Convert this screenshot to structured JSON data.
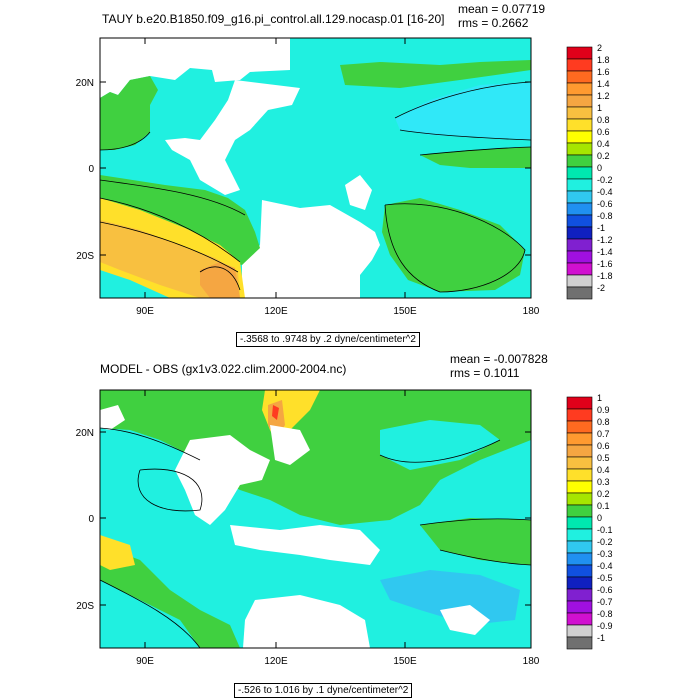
{
  "chart_data": [
    {
      "type": "heatmap",
      "title": "TAUY b.e20.B1850.f09_g16.pi_control.all.129.nocasp.01 [16-20]",
      "stats": {
        "mean": "mean = 0.07719",
        "rms": "rms = 0.2662"
      },
      "range_label": "-.3568 to .9748 by .2 dyne/centimeter^2",
      "x_ticks": [
        "90E",
        "120E",
        "150E",
        "180"
      ],
      "y_ticks": [
        "20N",
        "0",
        "20S"
      ],
      "xlim": [
        80,
        180
      ],
      "ylim": [
        -30,
        30
      ],
      "colorbar_labels": [
        "2",
        "1.8",
        "1.6",
        "1.4",
        "1.2",
        "1",
        "0.8",
        "0.6",
        "0.4",
        "0.2",
        "0",
        "-0.2",
        "-0.4",
        "-0.6",
        "-0.8",
        "-1",
        "-1.2",
        "-1.4",
        "-1.6",
        "-1.8",
        "-2"
      ],
      "colorbar_colors": [
        "#e0001a",
        "#ff3b20",
        "#ff6a20",
        "#ff9a30",
        "#f5a642",
        "#f8c040",
        "#ffe02a",
        "#ffff00",
        "#a6e600",
        "#40d040",
        "#00e8b0",
        "#20f0e0",
        "#30c8f0",
        "#2090f0",
        "#1050e0",
        "#1020c0",
        "#8020d0",
        "#a010e0",
        "#d010d0",
        "#d0d0d0",
        "#707070"
      ]
    },
    {
      "type": "heatmap",
      "title": "MODEL - OBS (gx1v3.022.clim.2000-2004.nc)",
      "stats": {
        "mean": "mean = -0.007828",
        "rms": "rms = 0.1011"
      },
      "range_label": "-.526 to 1.016 by .1 dyne/centimeter^2",
      "x_ticks": [
        "90E",
        "120E",
        "150E",
        "180"
      ],
      "y_ticks": [
        "20N",
        "0",
        "20S"
      ],
      "xlim": [
        80,
        180
      ],
      "ylim": [
        -30,
        30
      ],
      "colorbar_labels": [
        "1",
        "0.9",
        "0.8",
        "0.7",
        "0.6",
        "0.5",
        "0.4",
        "0.3",
        "0.2",
        "0.1",
        "0",
        "-0.1",
        "-0.2",
        "-0.3",
        "-0.4",
        "-0.5",
        "-0.6",
        "-0.7",
        "-0.8",
        "-0.9",
        "-1"
      ],
      "colorbar_colors": [
        "#e0001a",
        "#ff3b20",
        "#ff6a20",
        "#ff9a30",
        "#f5a642",
        "#f8c040",
        "#ffe02a",
        "#ffff00",
        "#a6e600",
        "#40d040",
        "#00e8b0",
        "#20f0e0",
        "#30c8f0",
        "#2090f0",
        "#1050e0",
        "#1020c0",
        "#8020d0",
        "#a010e0",
        "#d010d0",
        "#d0d0d0",
        "#707070"
      ]
    }
  ]
}
